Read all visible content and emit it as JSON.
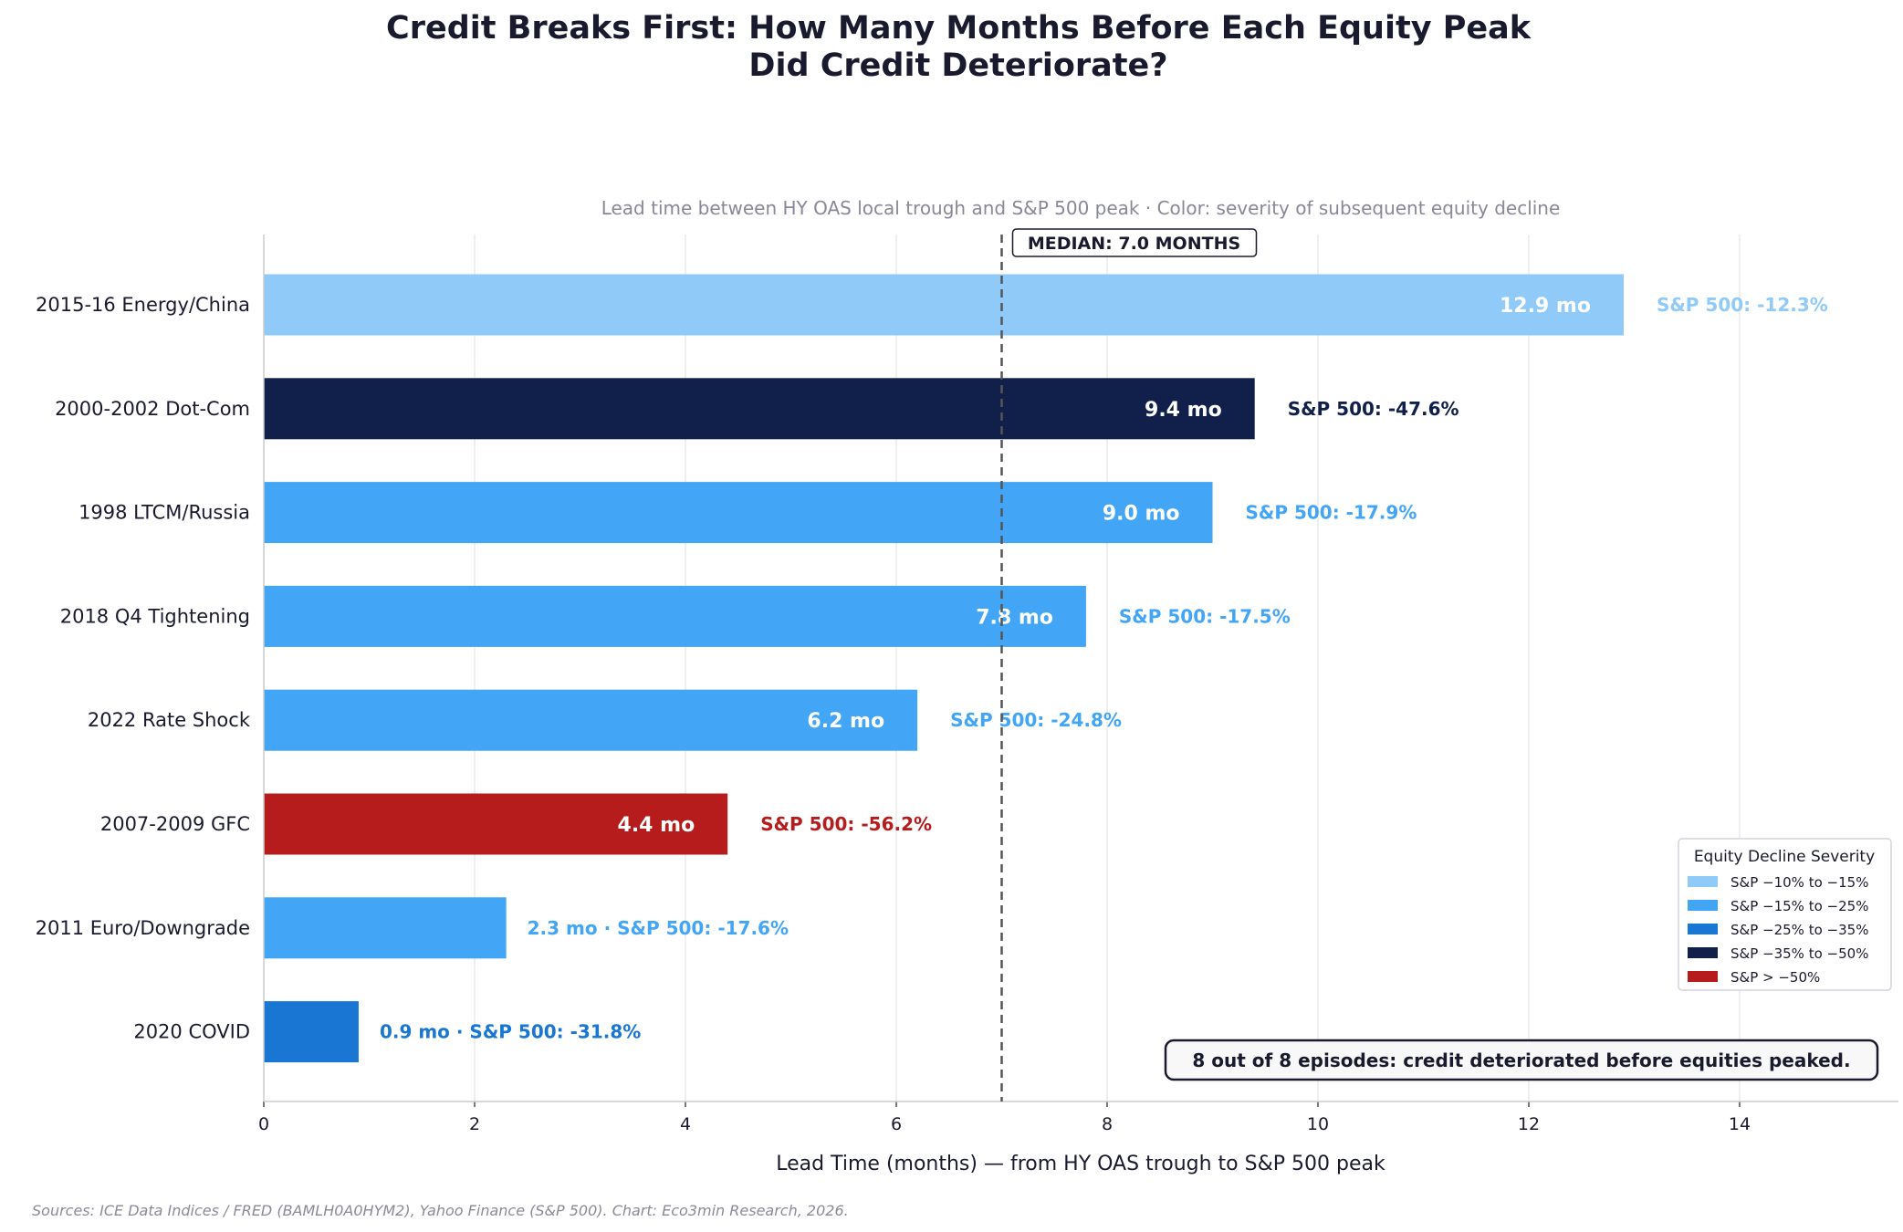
{
  "chart_data": {
    "type": "bar",
    "orientation": "horizontal",
    "title": "Credit Breaks First: How Many Months Before Each Equity Peak\nDid Credit Deteriorate?",
    "subtitle": "Lead time between HY OAS local trough and S&P 500 peak · Color: severity of subsequent equity decline",
    "xlabel": "Lead Time (months) — from HY OAS trough to S&P 500 peak",
    "ylabel": "",
    "xlim": [
      0,
      15.5
    ],
    "xticks": [
      0,
      2,
      4,
      6,
      8,
      10,
      12,
      14
    ],
    "grid": "vertical",
    "categories": [
      "2015-16 Energy/China",
      "2000-2002 Dot-Com",
      "1998 LTCM/Russia",
      "2018 Q4 Tightening",
      "2022 Rate Shock",
      "2007-2009 GFC",
      "2011 Euro/Downgrade",
      "2020 COVID"
    ],
    "values": [
      12.9,
      9.4,
      9.0,
      7.8,
      6.2,
      4.4,
      2.3,
      0.9
    ],
    "sp500_decline": [
      "-12.3%",
      "-47.6%",
      "-17.9%",
      "-17.5%",
      "-24.8%",
      "-56.2%",
      "-17.6%",
      "-31.8%"
    ],
    "severity": [
      0,
      3,
      1,
      1,
      1,
      4,
      1,
      2
    ],
    "value_suffix": " mo",
    "decline_prefix": "S&P 500: ",
    "separator": "  ·  ",
    "median": {
      "value": 7.0,
      "label": "MEDIAN: 7.0 MONTHS"
    },
    "legend": {
      "title": "Equity Decline Severity",
      "position": "lower-right",
      "entries": [
        {
          "label": "S&P −10% to −15%",
          "color": "#90CAF9"
        },
        {
          "label": "S&P −15% to −25%",
          "color": "#42A5F5"
        },
        {
          "label": "S&P −25% to −35%",
          "color": "#1976D2"
        },
        {
          "label": "S&P −35% to −50%",
          "color": "#10204A"
        },
        {
          "label": "S&P > −50%",
          "color": "#B71C1C"
        }
      ]
    },
    "annotation": "8 out of 8 episodes: credit deteriorated before equities peaked.",
    "source": "Sources: ICE Data Indices / FRED (BAMLH0A0HYM2), Yahoo Finance (S&P 500).  Chart: Eco3min Research, 2026."
  }
}
